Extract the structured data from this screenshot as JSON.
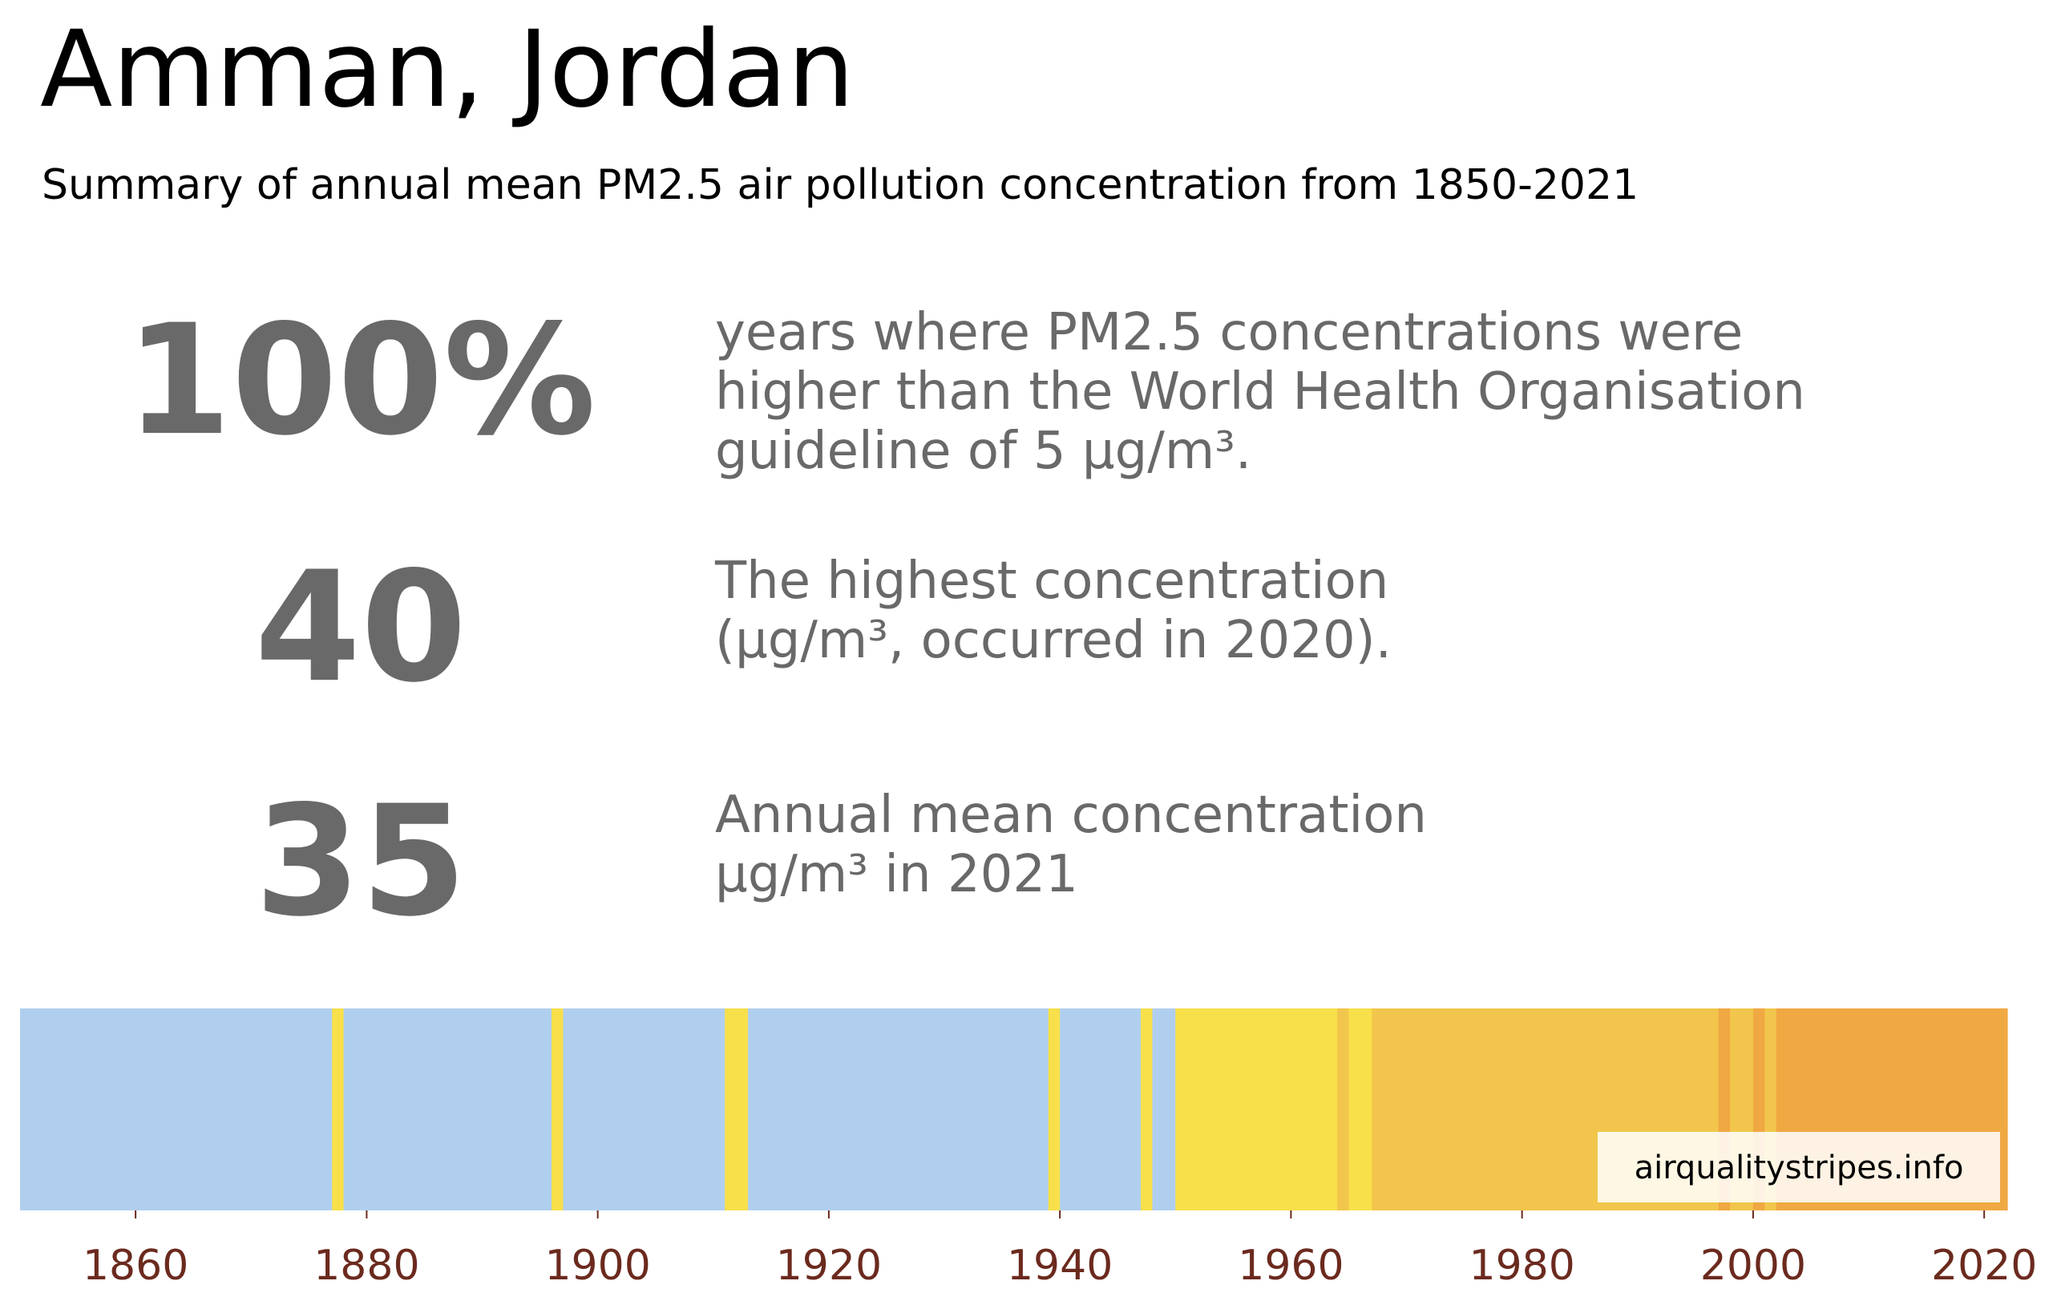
{
  "title": "Amman, Jordan",
  "subtitle": "Summary of annual mean PM2.5 air pollution concentration from 1850-2021",
  "stats": [
    {
      "value": "100%",
      "lines": [
        "years where PM2.5 concentrations were",
        "higher than the World Health Organisation",
        "guideline of 5 µg/m³."
      ]
    },
    {
      "value": "40",
      "lines": [
        "The highest concentration",
        "(µg/m³, occurred in 2020)."
      ]
    },
    {
      "value": "35",
      "lines": [
        "Annual mean concentration",
        "µg/m³ in 2021"
      ]
    }
  ],
  "watermark": "airqualitystripes.info",
  "colors": {
    "blue": "#b0cfee",
    "yellow": "#f8e04a",
    "light_orange": "#f2c64c",
    "orange": "#f0a842",
    "text_gray": "#696969",
    "tick_color": "#6b2a1e"
  },
  "chart_data": {
    "type": "heatmap",
    "x_range": [
      1850,
      2022
    ],
    "x_ticks": [
      1860,
      1880,
      1900,
      1920,
      1940,
      1960,
      1980,
      2000,
      2020
    ],
    "tick_labels": [
      "1860",
      "1880",
      "1900",
      "1920",
      "1940",
      "1960",
      "1980",
      "2000",
      "2020"
    ],
    "segments": [
      {
        "start": 1850,
        "end": 1877,
        "color": "blue"
      },
      {
        "start": 1877,
        "end": 1878,
        "color": "yellow"
      },
      {
        "start": 1878,
        "end": 1896,
        "color": "blue"
      },
      {
        "start": 1896,
        "end": 1897,
        "color": "yellow"
      },
      {
        "start": 1897,
        "end": 1911,
        "color": "blue"
      },
      {
        "start": 1911,
        "end": 1913,
        "color": "yellow"
      },
      {
        "start": 1913,
        "end": 1939,
        "color": "blue"
      },
      {
        "start": 1939,
        "end": 1940,
        "color": "yellow"
      },
      {
        "start": 1940,
        "end": 1947,
        "color": "blue"
      },
      {
        "start": 1947,
        "end": 1948,
        "color": "yellow"
      },
      {
        "start": 1948,
        "end": 1950,
        "color": "blue"
      },
      {
        "start": 1950,
        "end": 1964,
        "color": "yellow"
      },
      {
        "start": 1964,
        "end": 1965,
        "color": "light_orange"
      },
      {
        "start": 1965,
        "end": 1967,
        "color": "yellow"
      },
      {
        "start": 1967,
        "end": 1997,
        "color": "light_orange"
      },
      {
        "start": 1997,
        "end": 1998,
        "color": "orange"
      },
      {
        "start": 1998,
        "end": 2000,
        "color": "light_orange"
      },
      {
        "start": 2000,
        "end": 2001,
        "color": "orange"
      },
      {
        "start": 2001,
        "end": 2002,
        "color": "light_orange"
      },
      {
        "start": 2002,
        "end": 2022,
        "color": "orange"
      }
    ]
  }
}
